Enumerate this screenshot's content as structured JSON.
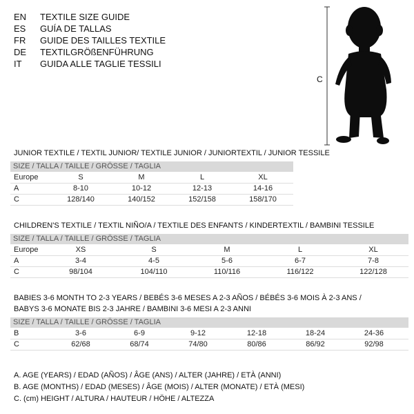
{
  "header": {
    "languages": [
      {
        "code": "EN",
        "title": "TEXTILE SIZE GUIDE"
      },
      {
        "code": "ES",
        "title": "GUÍA DE TALLAS"
      },
      {
        "code": "FR",
        "title": "GUIDE DES TAILLES TEXTILE"
      },
      {
        "code": "DE",
        "title": "TEXTILGRÖßENFÜHRUNG"
      },
      {
        "code": "IT",
        "title": "GUIDA ALLE TAGLIE TESSILI"
      }
    ]
  },
  "figure": {
    "label": "C"
  },
  "sections": [
    {
      "title_lines": [
        "JUNIOR TEXTILE / TEXTIL JUNIOR/ TEXTILE JUNIOR / JUNIORTEXTIL / JUNIOR TESSILE"
      ],
      "header": "SIZE / TALLA / TAILLE / GRÖSSE / TAGLIA",
      "rows": [
        {
          "label": "Europe",
          "cells": [
            "S",
            "M",
            "L",
            "XL"
          ]
        },
        {
          "label": "A",
          "cells": [
            "8-10",
            "10-12",
            "12-13",
            "14-16"
          ]
        },
        {
          "label": "C",
          "cells": [
            "128/140",
            "140/152",
            "152/158",
            "158/170"
          ]
        }
      ]
    },
    {
      "title_lines": [
        "CHILDREN'S TEXTILE / TEXTIL NIÑO/A / TEXTILE DES ENFANTS / KINDERTEXTIL / BAMBINI TESSILE"
      ],
      "header": "SIZE / TALLA / TAILLE / GRÖSSE / TAGLIA",
      "rows": [
        {
          "label": "Europe",
          "cells": [
            "XS",
            "S",
            "M",
            "L",
            "XL"
          ]
        },
        {
          "label": "A",
          "cells": [
            "3-4",
            "4-5",
            "5-6",
            "6-7",
            "7-8"
          ]
        },
        {
          "label": "C",
          "cells": [
            "98/104",
            "104/110",
            "110/116",
            "116/122",
            "122/128"
          ]
        }
      ]
    },
    {
      "title_lines": [
        "BABIES 3-6 MONTH TO 2-3 YEARS / BEBÉS 3-6 MESES A 2-3 AÑOS / BÉBÉS 3-6 MOIS À 2-3 ANS /",
        "BABYS 3-6 MONATE BIS 2-3 JAHRE / BAMBINI 3-6 MESI A 2-3 ANNI"
      ],
      "header": "SIZE / TALLA / TAILLE / GRÖSSE / TAGLIA",
      "rows": [
        {
          "label": "B",
          "cells": [
            "3-6",
            "6-9",
            "9-12",
            "12-18",
            "18-24",
            "24-36"
          ]
        },
        {
          "label": "C",
          "cells": [
            "62/68",
            "68/74",
            "74/80",
            "80/86",
            "86/92",
            "92/98"
          ]
        }
      ]
    }
  ],
  "legend": [
    "A. AGE (YEARS) / EDAD (AÑOS) / ÂGE (ANS) / ALTER (JAHRE) / ETÀ (ANNI)",
    "B. AGE (MONTHS) / EDAD (MESES) / ÂGE (MOIS) / ALTER (MONATE) / ETÀ (MESI)",
    "C. (cm) HEIGHT / ALTURA / HAUTEUR / HÖHE / ALTEZZA"
  ]
}
